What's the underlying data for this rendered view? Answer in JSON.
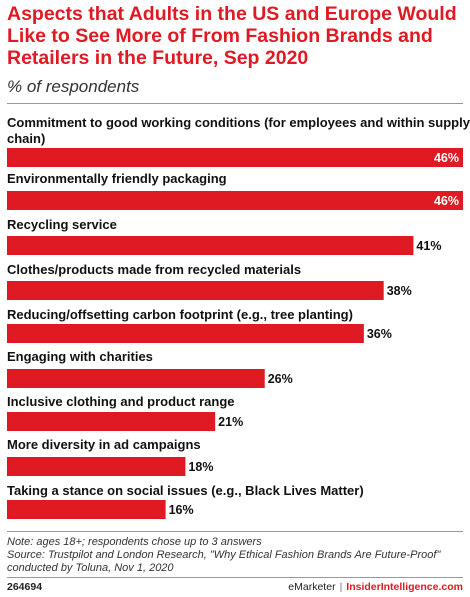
{
  "header": {
    "title": "Aspects that Adults in the US and Europe Would Like to See More of From Fashion Brands and Retailers in the Future, Sep 2020",
    "subtitle": "% of respondents"
  },
  "chart_data": {
    "type": "bar",
    "orientation": "horizontal",
    "categories": [
      "Commitment to good working conditions (for employees and within supply chain)",
      "Environmentally friendly packaging",
      "Recycling service",
      "Clothes/products made from recycled materials",
      "Reducing/offsetting carbon footprint (e.g., tree planting)",
      "Engaging with charities",
      "Inclusive clothing and product range",
      "More diversity in ad campaigns",
      "Taking a stance on social issues (e.g., Black Lives Matter)"
    ],
    "values": [
      46,
      46,
      41,
      38,
      36,
      26,
      21,
      18,
      16
    ],
    "value_labels": [
      "46%",
      "46%",
      "41%",
      "38%",
      "36%",
      "26%",
      "21%",
      "18%",
      "16%"
    ],
    "xlim": [
      0,
      46
    ],
    "bar_color": "#e01a22",
    "grid": false
  },
  "footer": {
    "note": "Note: ages 18+; respondents chose up to 3 answers",
    "source": "Source: Trustpilot and London Research, \"Why Ethical Fashion Brands Are Future-Proof\" conducted by Toluna, Nov 1, 2020",
    "chart_id": "264694",
    "brand_left": "eMarketer",
    "separator": "|",
    "brand_right": "InsiderIntelligence.com"
  }
}
